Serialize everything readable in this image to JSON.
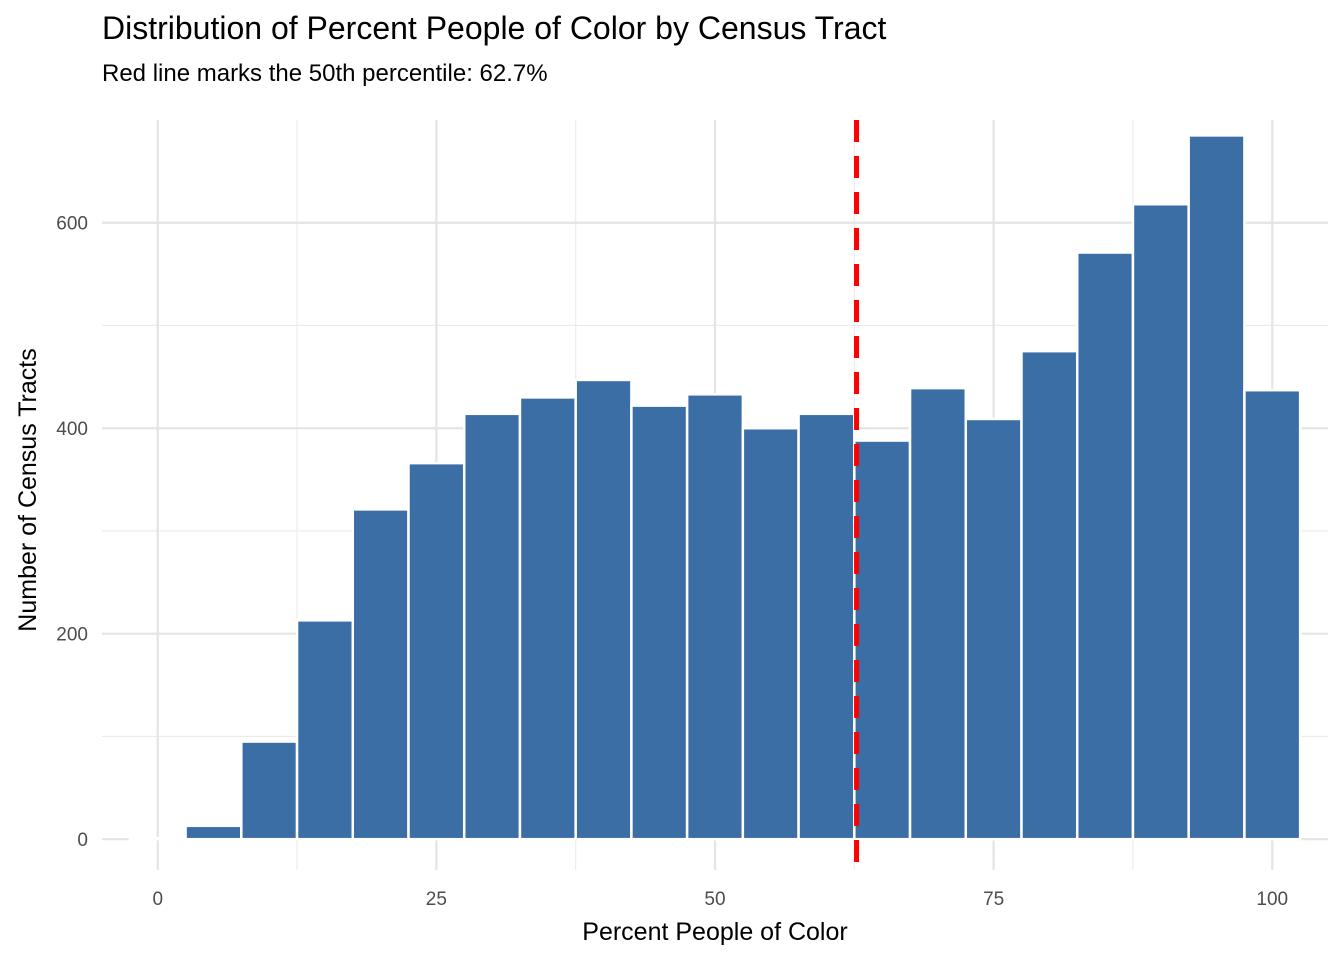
{
  "chart_data": {
    "type": "bar",
    "title": "Distribution of Percent People of Color by Census Tract",
    "subtitle": "Red line marks the 50th percentile: 62.7%",
    "xlabel": "Percent People of Color",
    "ylabel": "Number of Census Tracts",
    "xlim": [
      -5,
      105
    ],
    "ylim": [
      -30,
      700
    ],
    "x_ticks": [
      0,
      25,
      50,
      75,
      100
    ],
    "y_ticks": [
      0,
      200,
      400,
      600
    ],
    "bin_width": 5,
    "bin_centers": [
      0,
      5,
      10,
      15,
      20,
      25,
      30,
      35,
      40,
      45,
      50,
      55,
      60,
      65,
      70,
      75,
      80,
      85,
      90,
      95,
      100
    ],
    "values": [
      1,
      13,
      95,
      213,
      321,
      366,
      414,
      430,
      447,
      422,
      433,
      400,
      414,
      388,
      439,
      409,
      475,
      571,
      618,
      685,
      437
    ],
    "bar_color": "#3a6ea5",
    "grid": true,
    "reference_line": {
      "x": 62.7,
      "color": "#ff0000",
      "style": "dashed"
    }
  }
}
